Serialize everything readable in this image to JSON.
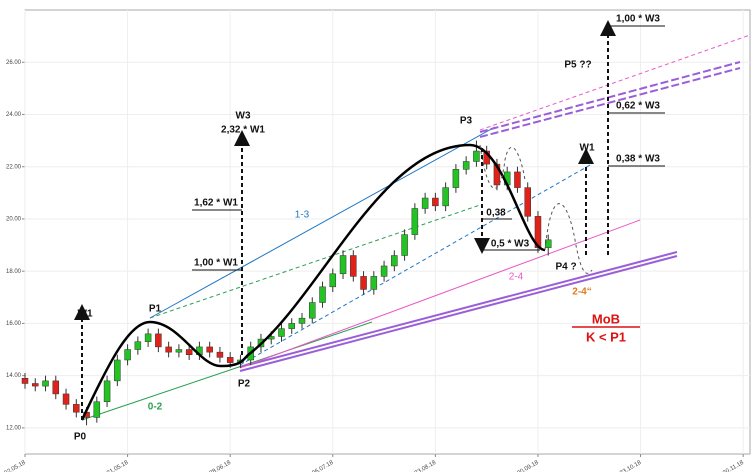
{
  "chart_data": {
    "type": "candlestick",
    "x": [
      0,
      1.5,
      3,
      4.5,
      6,
      7.5,
      9,
      10.5,
      12,
      13.5,
      15,
      16.5,
      18,
      19.5,
      21,
      22.5,
      24,
      25.5,
      27,
      28.5,
      30,
      31.5,
      33,
      34.5,
      36,
      37.5,
      39,
      40.5,
      42,
      43.5,
      45,
      46.5,
      48,
      49.5,
      51,
      52.5,
      54,
      55.5,
      57,
      58.5,
      60,
      61.5,
      63,
      64.5,
      66,
      67.5,
      69,
      70.5,
      72,
      73.5,
      75,
      76.5
    ],
    "open": [
      13.9,
      13.7,
      13.6,
      13.8,
      13.3,
      12.9,
      12.6,
      12.4,
      13.0,
      13.8,
      14.6,
      15.0,
      15.3,
      15.6,
      15.1,
      14.9,
      15.0,
      14.8,
      15.1,
      14.9,
      14.7,
      14.5,
      14.6,
      15.1,
      15.4,
      15.5,
      15.8,
      16.0,
      16.2,
      16.8,
      17.4,
      17.9,
      18.6,
      17.8,
      17.3,
      17.8,
      18.2,
      18.6,
      19.4,
      20.4,
      20.8,
      20.5,
      21.2,
      21.9,
      22.2,
      22.6,
      22.1,
      21.3,
      21.8,
      21.2,
      20.1,
      18.9
    ],
    "high": [
      14.1,
      13.9,
      14.0,
      14.0,
      13.5,
      13.1,
      12.8,
      13.2,
      14.0,
      14.8,
      15.2,
      15.5,
      15.8,
      15.8,
      15.3,
      15.2,
      15.2,
      15.3,
      15.3,
      15.1,
      14.9,
      14.8,
      15.3,
      15.6,
      15.7,
      16.0,
      16.2,
      16.4,
      17.0,
      17.6,
      18.1,
      18.8,
      18.8,
      18.0,
      18.0,
      18.4,
      18.8,
      19.6,
      20.6,
      21.0,
      21.0,
      21.4,
      22.1,
      22.4,
      23.0,
      22.8,
      22.3,
      22.0,
      22.0,
      21.4,
      20.3,
      19.4
    ],
    "low": [
      13.5,
      13.4,
      13.4,
      13.1,
      12.7,
      12.4,
      12.1,
      12.2,
      12.8,
      13.6,
      14.4,
      14.8,
      15.1,
      14.9,
      14.7,
      14.7,
      14.6,
      14.6,
      14.7,
      14.5,
      14.3,
      14.3,
      14.4,
      14.9,
      15.2,
      15.3,
      15.6,
      15.8,
      16.0,
      16.6,
      17.2,
      17.7,
      17.6,
      17.1,
      17.1,
      17.6,
      18.0,
      18.4,
      19.2,
      20.2,
      20.3,
      20.3,
      21.0,
      21.7,
      22.0,
      21.9,
      21.1,
      21.1,
      21.0,
      19.9,
      18.7,
      18.6
    ],
    "close": [
      13.7,
      13.6,
      13.8,
      13.3,
      12.9,
      12.6,
      12.4,
      13.0,
      13.8,
      14.6,
      15.0,
      15.3,
      15.6,
      15.1,
      14.9,
      15.0,
      14.8,
      15.1,
      14.9,
      14.7,
      14.5,
      14.6,
      15.1,
      15.4,
      15.5,
      15.8,
      16.0,
      16.2,
      16.8,
      17.4,
      17.9,
      18.6,
      17.8,
      17.3,
      17.8,
      18.2,
      18.6,
      19.4,
      20.4,
      20.8,
      20.5,
      21.2,
      21.9,
      22.2,
      22.6,
      22.1,
      21.3,
      21.8,
      21.2,
      20.1,
      18.9,
      19.2
    ],
    "up_color": "#22c322",
    "down_color": "#e0221b",
    "xlim": [
      0,
      106
    ],
    "xticks": [
      {
        "value": 0,
        "label": "02.05.18"
      },
      {
        "value": 15,
        "label": "31.05.18"
      },
      {
        "value": 30,
        "label": "28.06.18"
      },
      {
        "value": 45,
        "label": "26.07.18"
      },
      {
        "value": 60,
        "label": "23.08.18"
      },
      {
        "value": 75,
        "label": "20.09.18"
      },
      {
        "value": 90,
        "label": "23.10.18"
      },
      {
        "value": 105,
        "label": "20.11.18"
      }
    ],
    "ylim": [
      11,
      28
    ],
    "yticks": [
      {
        "value": 12,
        "label": "12.00"
      },
      {
        "value": 14,
        "label": "14.00"
      },
      {
        "value": 16,
        "label": "16.00"
      },
      {
        "value": 18,
        "label": "18.00"
      },
      {
        "value": 20,
        "label": "20.00"
      },
      {
        "value": 22,
        "label": "22.00"
      },
      {
        "value": 24,
        "label": "24.00"
      },
      {
        "value": 26,
        "label": "26.00"
      }
    ],
    "grid": true
  },
  "annotations": {
    "p0": "P0",
    "p1": "P1",
    "p2": "P2",
    "p3": "P3",
    "p4": "P4 ?",
    "p5": "P5 ??",
    "w1_left": "W1",
    "w3": "W3",
    "w3_ratio": "2,32 * W1",
    "w1_162": "1,62 * W1",
    "w1_100": "1,00 * W1",
    "line_13": "1-3",
    "line_02": "0-2",
    "r038": "0,38",
    "w3_05": "0,5 * W3",
    "line_24": "2-4",
    "line_24b": "2-4“",
    "mob": "MoB",
    "k_p1": "K < P1",
    "w1_right": "W1",
    "w3_100": "1,00 * W3",
    "w3_062": "0,62 * W3",
    "w3_038": "0,38 * W3"
  }
}
